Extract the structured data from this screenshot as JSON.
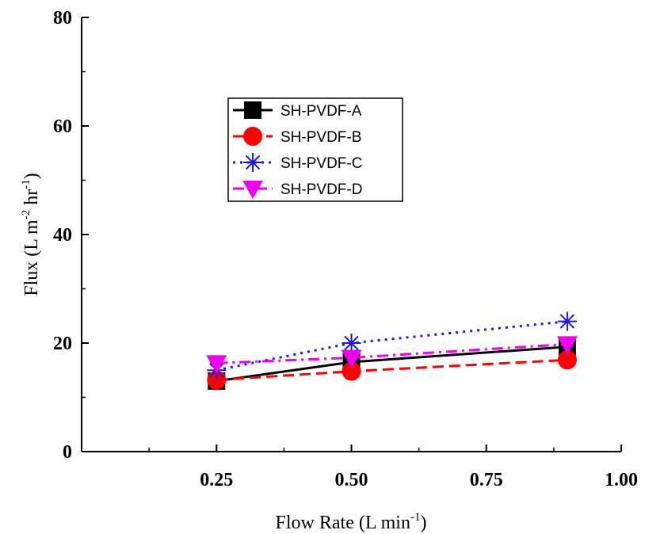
{
  "chart_data": {
    "type": "line",
    "xlabel": {
      "main": "Flow Rate (L min",
      "sup": "-1",
      "end": ")"
    },
    "ylabel": {
      "main": "Flux (L m",
      "sup1": "-2",
      "mid": " hr",
      "sup2": "-1",
      "end": ")"
    },
    "xlim": [
      0,
      1.0
    ],
    "ylim": [
      0,
      80
    ],
    "xticks": [
      0.25,
      0.5,
      0.75,
      1.0
    ],
    "xtick_labels": [
      "0.25",
      "0.50",
      "0.75",
      "1.00"
    ],
    "yticks": [
      0,
      20,
      40,
      60,
      80
    ],
    "ytick_labels": [
      "0",
      "20",
      "40",
      "60",
      "80"
    ],
    "grid": false,
    "legend_position": "upper-left-inside",
    "series": [
      {
        "name": "SH-PVDF-A",
        "x": [
          0.25,
          0.5,
          0.9
        ],
        "y": [
          13.0,
          16.5,
          19.3
        ],
        "color": "#000000",
        "marker": "square",
        "line": "solid"
      },
      {
        "name": "SH-PVDF-B",
        "x": [
          0.25,
          0.5,
          0.9
        ],
        "y": [
          13.2,
          14.8,
          16.9
        ],
        "color": "#ff0000",
        "marker": "circle",
        "line": "dashed"
      },
      {
        "name": "SH-PVDF-C",
        "x": [
          0.25,
          0.5,
          0.9
        ],
        "y": [
          15.0,
          20.0,
          24.0
        ],
        "color": "#1a1adb",
        "marker": "asterisk",
        "line": "dotted"
      },
      {
        "name": "SH-PVDF-D",
        "x": [
          0.25,
          0.5,
          0.9
        ],
        "y": [
          16.3,
          17.3,
          19.8
        ],
        "color": "#ee00ee",
        "marker": "triangle-down",
        "line": "dashdot"
      }
    ]
  }
}
